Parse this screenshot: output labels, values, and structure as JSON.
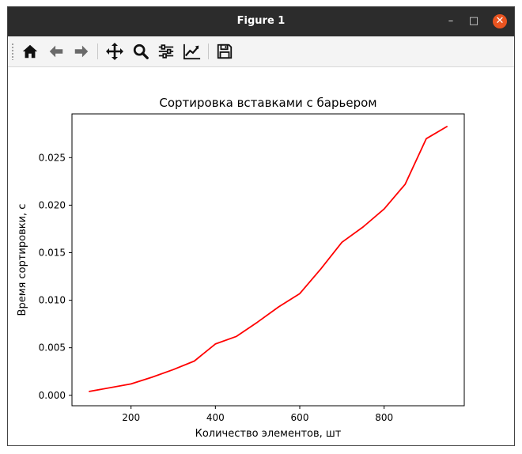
{
  "window": {
    "title": "Figure 1",
    "minimize_symbol": "–",
    "maximize_symbol": "□",
    "close_symbol": "✕"
  },
  "toolbar": {
    "buttons": [
      {
        "name": "home-button",
        "icon": "home-icon"
      },
      {
        "name": "back-button",
        "icon": "arrow-left-icon"
      },
      {
        "name": "forward-button",
        "icon": "arrow-right-icon"
      },
      {
        "name": "pan-button",
        "icon": "move-icon"
      },
      {
        "name": "zoom-button",
        "icon": "magnifier-icon"
      },
      {
        "name": "configure-subplots-button",
        "icon": "sliders-icon"
      },
      {
        "name": "edit-axis-button",
        "icon": "line-chart-icon"
      },
      {
        "name": "save-button",
        "icon": "floppy-disk-icon"
      }
    ]
  },
  "chart_data": {
    "type": "line",
    "title": "Сортировка вставками с барьером",
    "xlabel": "Количество элементов, шт",
    "ylabel": "Время сортировки, с",
    "x": [
      100,
      200,
      250,
      300,
      350,
      400,
      450,
      500,
      550,
      600,
      650,
      700,
      750,
      800,
      850,
      900,
      950
    ],
    "series": [
      {
        "color": "#ff0000",
        "values": [
          0.0004,
          0.0012,
          0.0019,
          0.0027,
          0.0036,
          0.0054,
          0.0062,
          0.0077,
          0.0093,
          0.0107,
          0.0133,
          0.0161,
          0.0177,
          0.0196,
          0.0222,
          0.027,
          0.0283
        ]
      }
    ],
    "xlim": [
      60,
      990
    ],
    "ylim": [
      -0.0011,
      0.0296
    ],
    "xticks": [
      200,
      400,
      600,
      800
    ],
    "xtick_labels": [
      "200",
      "400",
      "600",
      "800"
    ],
    "yticks": [
      0.0,
      0.005,
      0.01,
      0.015,
      0.02,
      0.025
    ],
    "ytick_labels": [
      "0.000",
      "0.005",
      "0.010",
      "0.015",
      "0.020",
      "0.025"
    ],
    "grid": false,
    "legend": "none"
  }
}
